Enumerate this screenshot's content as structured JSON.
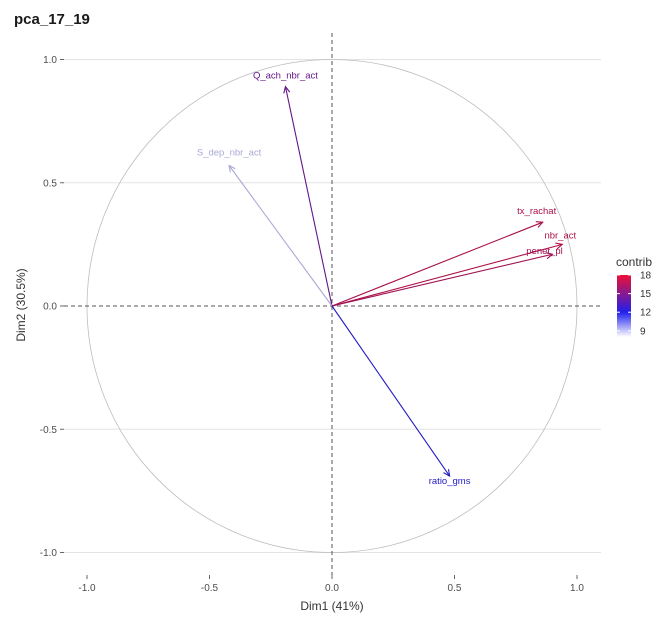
{
  "chart_data": {
    "type": "scatter",
    "subtype": "pca-variable-correlation-circle",
    "title": "pca_17_19",
    "xlabel": "Dim1 (41%)",
    "ylabel": "Dim2 (30.5%)",
    "xlim": [
      -1.1,
      1.1
    ],
    "ylim": [
      -1.1,
      1.1
    ],
    "x_ticks": [
      "-1.0",
      "-0.5",
      "0.0",
      "0.5",
      "1.0"
    ],
    "y_ticks": [
      "1.0",
      "0.5",
      "0.0",
      "-0.5",
      "-1.0"
    ],
    "x_tick_values": [
      -1.0,
      -0.5,
      0.0,
      0.5,
      1.0
    ],
    "y_tick_values": [
      1.0,
      0.5,
      0.0,
      -0.5,
      -1.0
    ],
    "grid": true,
    "unit_circle": true,
    "reference_lines": {
      "x": 0,
      "y": 0,
      "style": "dashed"
    },
    "variables": [
      {
        "name": "Q_ach_nbr_act",
        "x": -0.19,
        "y": 0.89,
        "contrib": 14.5
      },
      {
        "name": "S_dep_nbr_act",
        "x": -0.42,
        "y": 0.57,
        "contrib": 9.0
      },
      {
        "name": "tx_rachat",
        "x": 0.86,
        "y": 0.34,
        "contrib": 16.8
      },
      {
        "name": "nbr_act",
        "x": 0.94,
        "y": 0.25,
        "contrib": 17.0
      },
      {
        "name": "penet_pl",
        "x": 0.9,
        "y": 0.21,
        "contrib": 16.5
      },
      {
        "name": "ratio_gms",
        "x": 0.48,
        "y": -0.69,
        "contrib": 12.2
      }
    ],
    "legend": {
      "title": "contrib",
      "position": "right",
      "ticks": [
        18,
        15,
        12,
        9
      ],
      "range": [
        8,
        18
      ],
      "colors": {
        "low": "#ffffff",
        "mid": "#2020ee",
        "high": "#ee1133"
      }
    }
  }
}
